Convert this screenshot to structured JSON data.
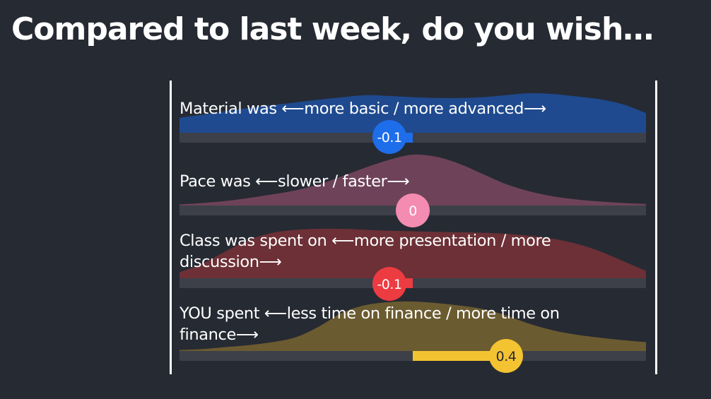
{
  "slide": {
    "title": "Compared to last week, do you wish…"
  },
  "chart_data": {
    "type": "scale",
    "xlim": [
      -1,
      1
    ],
    "rows": [
      {
        "label": "Material was ⟵more basic / more advanced⟶",
        "mean": -0.1,
        "mean_label": "-0.1",
        "color": "#1f4a8f",
        "dot_color": "#1e6dea",
        "dot_text_color": "#ffffff",
        "distribution": [
          0.38,
          0.46,
          0.55,
          0.63,
          0.7,
          0.77,
          0.84,
          0.9,
          0.95,
          0.93,
          0.9,
          0.88,
          0.88,
          0.9,
          0.95,
          1.0,
          0.98,
          0.92,
          0.85,
          0.72,
          0.5
        ]
      },
      {
        "label": "Pace was ⟵slower / faster⟶",
        "mean": 0,
        "mean_label": "0",
        "color": "#6e4359",
        "dot_color": "#f48bb0",
        "dot_text_color": "#ffffff",
        "distribution": [
          0.02,
          0.05,
          0.09,
          0.15,
          0.22,
          0.3,
          0.42,
          0.58,
          0.75,
          0.9,
          1.0,
          0.96,
          0.82,
          0.62,
          0.42,
          0.28,
          0.18,
          0.12,
          0.08,
          0.05,
          0.03
        ]
      },
      {
        "label": "Class was spent on ⟵more presentation / more discussion⟶",
        "mean": -0.1,
        "mean_label": "-0.1",
        "color": "#6c3036",
        "dot_color": "#ec3c42",
        "dot_text_color": "#ffffff",
        "distribution": [
          0.12,
          0.3,
          0.55,
          0.78,
          0.92,
          0.98,
          1.0,
          1.0,
          0.98,
          0.96,
          0.95,
          0.94,
          0.93,
          0.92,
          0.9,
          0.86,
          0.8,
          0.7,
          0.55,
          0.35,
          0.15
        ]
      },
      {
        "label": "YOU spent ⟵less time on finance / more time on finance⟶",
        "mean": 0.4,
        "mean_label": "0.4",
        "color": "#6b5b30",
        "dot_color": "#f4c332",
        "dot_text_color": "#262a33",
        "distribution": [
          0.02,
          0.04,
          0.08,
          0.12,
          0.18,
          0.28,
          0.5,
          0.78,
          0.93,
          0.99,
          1.0,
          0.97,
          0.92,
          0.85,
          0.72,
          0.55,
          0.42,
          0.33,
          0.27,
          0.22,
          0.18
        ]
      }
    ]
  }
}
